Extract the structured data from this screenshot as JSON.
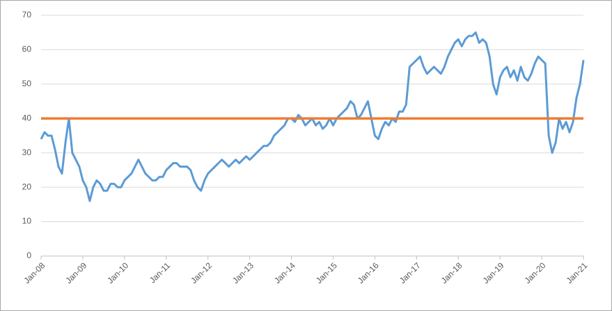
{
  "chart_data": {
    "type": "line",
    "x": [
      "2008-01",
      "2008-02",
      "2008-03",
      "2008-04",
      "2008-05",
      "2008-06",
      "2008-07",
      "2008-08",
      "2008-09",
      "2008-10",
      "2008-11",
      "2008-12",
      "2009-01",
      "2009-02",
      "2009-03",
      "2009-04",
      "2009-05",
      "2009-06",
      "2009-07",
      "2009-08",
      "2009-09",
      "2009-10",
      "2009-11",
      "2009-12",
      "2010-01",
      "2010-02",
      "2010-03",
      "2010-04",
      "2010-05",
      "2010-06",
      "2010-07",
      "2010-08",
      "2010-09",
      "2010-10",
      "2010-11",
      "2010-12",
      "2011-01",
      "2011-02",
      "2011-03",
      "2011-04",
      "2011-05",
      "2011-06",
      "2011-07",
      "2011-08",
      "2011-09",
      "2011-10",
      "2011-11",
      "2011-12",
      "2012-01",
      "2012-02",
      "2012-03",
      "2012-04",
      "2012-05",
      "2012-06",
      "2012-07",
      "2012-08",
      "2012-09",
      "2012-10",
      "2012-11",
      "2012-12",
      "2013-01",
      "2013-02",
      "2013-03",
      "2013-04",
      "2013-05",
      "2013-06",
      "2013-07",
      "2013-08",
      "2013-09",
      "2013-10",
      "2013-11",
      "2013-12",
      "2014-01",
      "2014-02",
      "2014-03",
      "2014-04",
      "2014-05",
      "2014-06",
      "2014-07",
      "2014-08",
      "2014-09",
      "2014-10",
      "2014-11",
      "2014-12",
      "2015-01",
      "2015-02",
      "2015-03",
      "2015-04",
      "2015-05",
      "2015-06",
      "2015-07",
      "2015-08",
      "2015-09",
      "2015-10",
      "2015-11",
      "2015-12",
      "2016-01",
      "2016-02",
      "2016-03",
      "2016-04",
      "2016-05",
      "2016-06",
      "2016-07",
      "2016-08",
      "2016-09",
      "2016-10",
      "2016-11",
      "2016-12",
      "2017-01",
      "2017-02",
      "2017-03",
      "2017-04",
      "2017-05",
      "2017-06",
      "2017-07",
      "2017-08",
      "2017-09",
      "2017-10",
      "2017-11",
      "2017-12",
      "2018-01",
      "2018-02",
      "2018-03",
      "2018-04",
      "2018-05",
      "2018-06",
      "2018-07",
      "2018-08",
      "2018-09",
      "2018-10",
      "2018-11",
      "2018-12",
      "2019-01",
      "2019-02",
      "2019-03",
      "2019-04",
      "2019-05",
      "2019-06",
      "2019-07",
      "2019-08",
      "2019-09",
      "2019-10",
      "2019-11",
      "2019-12",
      "2020-01",
      "2020-02",
      "2020-03",
      "2020-04",
      "2020-05",
      "2020-06",
      "2020-07",
      "2020-08",
      "2020-09",
      "2020-10",
      "2020-11",
      "2020-12",
      "2021-01"
    ],
    "series": [
      {
        "color": "#5b9bd5",
        "values": [
          34,
          36,
          35,
          35,
          31,
          26,
          24,
          33,
          40,
          30,
          28,
          26,
          22,
          20,
          16,
          20,
          22,
          21,
          19,
          19,
          21,
          21,
          20,
          20,
          22,
          23,
          24,
          26,
          28,
          26,
          24,
          23,
          22,
          22,
          23,
          23,
          25,
          26,
          27,
          27,
          26,
          26,
          26,
          25,
          22,
          20,
          19,
          22,
          24,
          25,
          26,
          27,
          28,
          27,
          26,
          27,
          28,
          27,
          28,
          29,
          28,
          29,
          30,
          31,
          32,
          32,
          33,
          35,
          36,
          37,
          38,
          40,
          40,
          39,
          41,
          40,
          38,
          39,
          40,
          38,
          39,
          37,
          38,
          40,
          38,
          40,
          41,
          42,
          43,
          45,
          44,
          40,
          41,
          43,
          45,
          40,
          35,
          34,
          37,
          39,
          38,
          40,
          39,
          42,
          42,
          44,
          55,
          56,
          57,
          58,
          55,
          53,
          54,
          55,
          54,
          53,
          55,
          58,
          60,
          62,
          63,
          61,
          63,
          64,
          64,
          65,
          62,
          63,
          62,
          58,
          50,
          47,
          52,
          54,
          55,
          52,
          54,
          51,
          55,
          52,
          51,
          53,
          56,
          58,
          57,
          56,
          35,
          30,
          33,
          40,
          37,
          39,
          36,
          39,
          46,
          50,
          57
        ]
      }
    ],
    "reference_line": {
      "value": 40,
      "color": "#ed7d31"
    },
    "xlim": [
      "2008-01",
      "2021-01"
    ],
    "xticks": [
      {
        "value": "2008-01",
        "label": "Jan-08"
      },
      {
        "value": "2009-01",
        "label": "Jan-09"
      },
      {
        "value": "2010-01",
        "label": "Jan-10"
      },
      {
        "value": "2011-01",
        "label": "Jan-11"
      },
      {
        "value": "2012-01",
        "label": "Jan-12"
      },
      {
        "value": "2013-01",
        "label": "Jan-13"
      },
      {
        "value": "2014-01",
        "label": "Jan-14"
      },
      {
        "value": "2015-01",
        "label": "Jan-15"
      },
      {
        "value": "2016-01",
        "label": "Jan-16"
      },
      {
        "value": "2017-01",
        "label": "Jan-17"
      },
      {
        "value": "2018-01",
        "label": "Jan-18"
      },
      {
        "value": "2019-01",
        "label": "Jan-19"
      },
      {
        "value": "2020-01",
        "label": "Jan-20"
      },
      {
        "value": "2021-01",
        "label": "Jan-21"
      }
    ],
    "ylim": [
      0,
      70
    ],
    "yticks": [
      0,
      10,
      20,
      30,
      40,
      50,
      60,
      70
    ],
    "grid": true
  }
}
